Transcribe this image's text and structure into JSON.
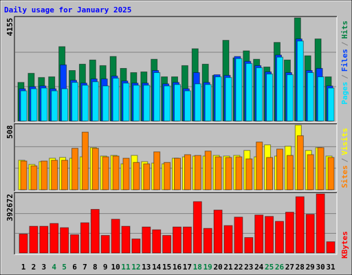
{
  "chart_data": [
    {
      "type": "bar",
      "title": "Daily usage for January 2025",
      "ylim": [
        0,
        4155
      ],
      "yticks": [
        4155
      ],
      "grid_divisions": 3,
      "legend_separator": "/",
      "series": [
        {
          "name": "Hits",
          "color": "#008040",
          "values": [
            1555,
            1922,
            1753,
            1781,
            2996,
            2035,
            2290,
            2459,
            2233,
            2601,
            2120,
            1951,
            1979,
            2488,
            1781,
            1781,
            2233,
            2912,
            2290,
            1838,
            3251,
            2544,
            2827,
            2488,
            2177,
            3166,
            2459,
            4155,
            2629,
            3308,
            1781
          ]
        },
        {
          "name": "Files",
          "color": "#0040ff",
          "values": [
            1300,
            1385,
            1414,
            1300,
            2262,
            1640,
            1527,
            1696,
            1696,
            1810,
            1612,
            1527,
            1527,
            2035,
            1498,
            1555,
            1300,
            1951,
            1555,
            1866,
            1838,
            2601,
            2403,
            2233,
            1979,
            2658,
            1951,
            3308,
            2035,
            2120,
            1414
          ]
        },
        {
          "name": "Pages",
          "color": "#00e0ff",
          "values": [
            1216,
            1300,
            1329,
            1216,
            1300,
            1555,
            1442,
            1583,
            1414,
            1724,
            1527,
            1442,
            1442,
            1951,
            1414,
            1470,
            1216,
            1498,
            1470,
            1781,
            1753,
            2516,
            2318,
            2149,
            1894,
            2573,
            1866,
            3223,
            1951,
            1781,
            1329
          ]
        }
      ]
    },
    {
      "type": "bar",
      "ylim": [
        0,
        508
      ],
      "yticks": [
        508
      ],
      "grid_divisions": 3,
      "legend_separator": "/",
      "series": [
        {
          "name": "Visits",
          "color": "#ffff00",
          "values": [
            232,
            199,
            221,
            248,
            254,
            248,
            259,
            331,
            265,
            270,
            204,
            270,
            221,
            210,
            204,
            248,
            259,
            265,
            265,
            270,
            265,
            270,
            309,
            259,
            353,
            265,
            342,
            508,
            309,
            331,
            265
          ]
        },
        {
          "name": "Sites",
          "color": "#ff8000",
          "values": [
            226,
            188,
            226,
            232,
            232,
            326,
            453,
            326,
            259,
            265,
            248,
            215,
            204,
            298,
            215,
            248,
            276,
            270,
            304,
            259,
            254,
            259,
            243,
            375,
            254,
            320,
            270,
            425,
            276,
            331,
            254
          ]
        }
      ]
    },
    {
      "type": "bar",
      "ylim": [
        0,
        392672
      ],
      "yticks": [
        392672
      ],
      "grid_divisions": 3,
      "categories": [
        "1",
        "2",
        "3",
        "4",
        "5",
        "6",
        "7",
        "8",
        "9",
        "10",
        "11",
        "12",
        "13",
        "14",
        "15",
        "16",
        "17",
        "18",
        "19",
        "20",
        "21",
        "22",
        "23",
        "24",
        "25",
        "26",
        "27",
        "28",
        "29",
        "30",
        "31"
      ],
      "weekend_indices": [
        3,
        4,
        10,
        11,
        17,
        18,
        24,
        25
      ],
      "weekday_color": "#000000",
      "weekend_color": "#008040",
      "series": [
        {
          "name": "KBytes",
          "color": "#ff0000",
          "values": [
            126225,
            177650,
            177650,
            196350,
            168300,
            121550,
            201025,
            289850,
            116875,
            224400,
            177650,
            93500,
            172975,
            154275,
            116875,
            172975,
            172975,
            341275,
            163625,
            285175,
            182325,
            238425,
            102850,
            252450,
            243100,
            210375,
            271150,
            374000,
            257125,
            392672,
            74800
          ]
        }
      ]
    }
  ]
}
